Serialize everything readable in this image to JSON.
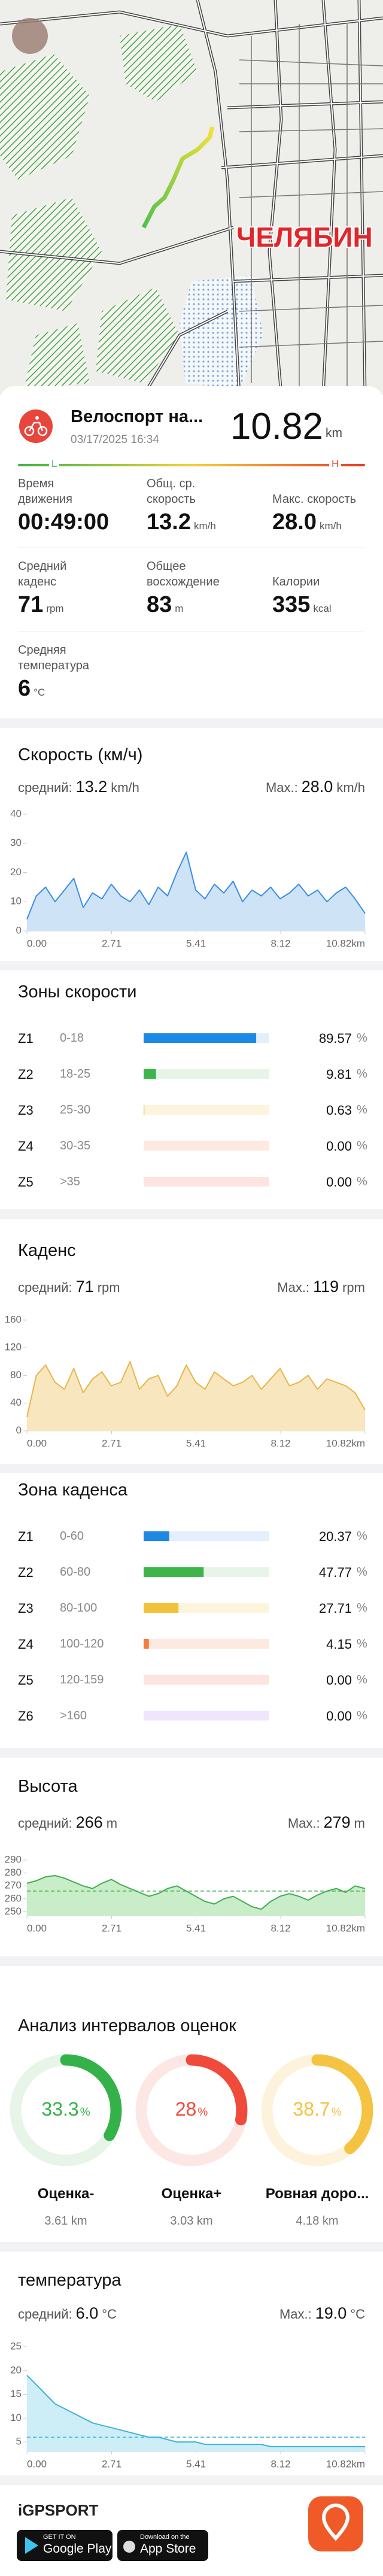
{
  "map": {
    "city_label": "ЧЕЛЯБИН"
  },
  "activity": {
    "title": "Велоспорт на...",
    "date": "03/17/2025 16:34",
    "distance": "10.82",
    "distance_unit": "km",
    "scale_low": "L",
    "scale_high": "H"
  },
  "stats": [
    {
      "label": "Время движения",
      "value": "00:49:00"
    },
    {
      "label": "Общ. ср. скорость",
      "value": "13.2",
      "unit": "km/h"
    },
    {
      "label": "Макс. скорость",
      "value": "28.0",
      "unit": "km/h"
    },
    {
      "label": "Средний каденс",
      "value": "71",
      "unit": "rpm"
    },
    {
      "label": "Общее восхождение",
      "value": "83",
      "unit": "m"
    },
    {
      "label": "Калории",
      "value": "335",
      "unit": "kcal"
    },
    {
      "label": "Средняя температура",
      "value": "6",
      "unit": "°C"
    }
  ],
  "chart_data": [
    {
      "type": "line",
      "title": "Скорость (км/ч)",
      "avg_label": "средний:",
      "avg": 13.2,
      "avg_unit": "km/h",
      "max_label": "Max.:",
      "max": {
        "value": 28,
        "label": "28.0"
      },
      "max_unit": "km/h",
      "color": "#3a8ee6",
      "fill": "#cfe3f7",
      "avg_line": false,
      "x": [
        0,
        0.3,
        0.6,
        0.9,
        1.2,
        1.5,
        1.8,
        2.1,
        2.4,
        2.7,
        3,
        3.3,
        3.6,
        3.9,
        4.2,
        4.5,
        4.8,
        5.1,
        5.4,
        5.7,
        6,
        6.3,
        6.6,
        6.9,
        7.2,
        7.5,
        7.8,
        8.1,
        8.4,
        8.7,
        9,
        9.3,
        9.6,
        9.9,
        10.2,
        10.5,
        10.82
      ],
      "values": [
        4,
        12,
        15,
        10,
        14,
        18,
        8,
        13,
        11,
        16,
        12,
        10,
        14,
        9,
        15,
        12,
        20,
        27,
        14,
        11,
        16,
        13,
        17,
        10,
        14,
        12,
        15,
        11,
        13,
        16,
        12,
        14,
        10,
        13,
        15,
        11,
        6
      ],
      "xlim": [
        0,
        10.82
      ],
      "xticks": [
        {
          "value": 0,
          "label": "0.00"
        },
        2.71,
        5.41,
        8.12,
        {
          "value": 10.82,
          "label": "10.82km"
        }
      ],
      "ylim": [
        0,
        40
      ],
      "yticks": [
        0,
        10,
        20,
        30,
        40
      ]
    },
    {
      "type": "line",
      "title": "Каденс",
      "avg_label": "средний:",
      "avg": 71,
      "avg_unit": "rpm",
      "max_label": "Max.:",
      "max": 119,
      "max_unit": "rpm",
      "color": "#e9b54a",
      "fill": "#f8e6bf",
      "avg_line": false,
      "x": [
        0,
        0.3,
        0.6,
        0.9,
        1.2,
        1.5,
        1.8,
        2.1,
        2.4,
        2.7,
        3,
        3.3,
        3.6,
        3.9,
        4.2,
        4.5,
        4.8,
        5.1,
        5.4,
        5.7,
        6,
        6.3,
        6.6,
        6.9,
        7.2,
        7.5,
        7.8,
        8.1,
        8.4,
        8.7,
        9,
        9.3,
        9.6,
        9.9,
        10.2,
        10.5,
        10.82
      ],
      "values": [
        20,
        80,
        95,
        70,
        60,
        90,
        55,
        75,
        85,
        65,
        70,
        100,
        60,
        75,
        80,
        50,
        65,
        95,
        70,
        60,
        85,
        75,
        65,
        70,
        80,
        60,
        75,
        90,
        65,
        70,
        80,
        60,
        75,
        70,
        65,
        55,
        30
      ],
      "xlim": [
        0,
        10.82
      ],
      "xticks": [
        {
          "value": 0,
          "label": "0.00"
        },
        2.71,
        5.41,
        8.12,
        {
          "value": 10.82,
          "label": "10.82km"
        }
      ],
      "ylim": [
        0,
        160
      ],
      "yticks": [
        0,
        40,
        80,
        120,
        160
      ]
    },
    {
      "type": "line",
      "title": "Высота",
      "avg_label": "средний:",
      "avg": 266,
      "avg_unit": "m",
      "max_label": "Max.:",
      "max": 279,
      "max_unit": "m",
      "color": "#3fae4f",
      "fill": "#c9ecc9",
      "avg_line": true,
      "x": [
        0,
        0.3,
        0.6,
        0.9,
        1.2,
        1.5,
        1.8,
        2.1,
        2.4,
        2.7,
        3,
        3.3,
        3.6,
        3.9,
        4.2,
        4.5,
        4.8,
        5.1,
        5.4,
        5.7,
        6,
        6.3,
        6.6,
        6.9,
        7.2,
        7.5,
        7.8,
        8.1,
        8.4,
        8.7,
        9,
        9.3,
        9.6,
        9.9,
        10.2,
        10.5,
        10.82
      ],
      "values": [
        272,
        274,
        277,
        278,
        276,
        273,
        270,
        268,
        272,
        275,
        271,
        268,
        265,
        262,
        264,
        268,
        270,
        266,
        262,
        258,
        256,
        260,
        262,
        258,
        254,
        252,
        258,
        262,
        264,
        262,
        259,
        263,
        266,
        268,
        265,
        270,
        268
      ],
      "xlim": [
        0,
        10.82
      ],
      "xticks": [
        {
          "value": 0,
          "label": "0.00"
        },
        2.71,
        5.41,
        8.12,
        {
          "value": 10.82,
          "label": "10.82km"
        }
      ],
      "ylim": [
        247,
        290
      ],
      "yticks": [
        250,
        260,
        270,
        280,
        290
      ]
    },
    {
      "type": "line",
      "title": "температура",
      "avg_label": "средний:",
      "avg": {
        "value": 6,
        "label": "6.0"
      },
      "avg_unit": "°C",
      "max_label": "Max.:",
      "max": {
        "value": 19,
        "label": "19.0"
      },
      "max_unit": "°C",
      "color": "#3fb3d9",
      "fill": "#cdeef7",
      "avg_line": true,
      "x": [
        0,
        0.3,
        0.6,
        0.9,
        1.2,
        1.5,
        1.8,
        2.1,
        2.4,
        2.7,
        3,
        3.3,
        3.6,
        3.9,
        4.2,
        4.5,
        4.8,
        5.1,
        5.4,
        5.7,
        6,
        6.3,
        6.6,
        6.9,
        7.2,
        7.5,
        7.8,
        8.1,
        8.4,
        8.7,
        9,
        9.3,
        9.6,
        9.9,
        10.2,
        10.5,
        10.82
      ],
      "values": [
        19,
        17,
        15,
        13,
        12,
        11,
        10,
        9,
        8.5,
        8,
        7.5,
        7,
        6.5,
        6,
        6,
        5.5,
        5,
        5,
        5,
        4.5,
        4.5,
        4.5,
        4.5,
        4.5,
        4.5,
        4.5,
        4,
        4,
        4,
        4,
        4,
        4,
        4,
        4,
        4,
        4,
        4
      ],
      "xlim": [
        0,
        10.82
      ],
      "xticks": [
        {
          "value": 0,
          "label": "0.00"
        },
        2.71,
        5.41,
        8.12,
        {
          "value": 10.82,
          "label": "10.82km"
        }
      ],
      "ylim": [
        3,
        25
      ],
      "yticks": [
        5,
        10,
        15,
        20,
        25
      ]
    }
  ],
  "speed_zones": {
    "title": "Зоны скорости",
    "unit": "%",
    "zones": [
      {
        "name": "Z1",
        "range": "0-18",
        "value": 89.57,
        "color": "#1e88e5",
        "track_color": "#e3f0fb"
      },
      {
        "name": "Z2",
        "range": "18-25",
        "value": 9.81,
        "color": "#3cb54a",
        "track_color": "#e6f5e7"
      },
      {
        "name": "Z3",
        "range": "25-30",
        "value": 0.63,
        "color": "#f2c13b",
        "track_color": "#fdf4de"
      },
      {
        "name": "Z4",
        "range": "30-35",
        "value": 0,
        "value_label": "0.00",
        "color": "#f47c3c",
        "track_color": "#fde9df"
      },
      {
        "name": "Z5",
        "range": ">35",
        "value": 0,
        "value_label": "0.00",
        "color": "#ee5a4a",
        "track_color": "#fde4e1"
      }
    ]
  },
  "cadence_zones": {
    "title": "Зона каденса",
    "unit": "%",
    "zones": [
      {
        "name": "Z1",
        "range": "0-60",
        "value": 20.37,
        "color": "#1e88e5",
        "track_color": "#e3f0fb"
      },
      {
        "name": "Z2",
        "range": "60-80",
        "value": 47.77,
        "color": "#3cb54a",
        "track_color": "#e6f5e7"
      },
      {
        "name": "Z3",
        "range": "80-100",
        "value": 27.71,
        "color": "#f2c13b",
        "track_color": "#fdf4de"
      },
      {
        "name": "Z4",
        "range": "100-120",
        "value": 4.15,
        "color": "#f47c3c",
        "track_color": "#fde9df"
      },
      {
        "name": "Z5",
        "range": "120-159",
        "value": 0,
        "value_label": "0.00",
        "color": "#ee5a4a",
        "track_color": "#fde4e1"
      },
      {
        "name": "Z6",
        "range": ">160",
        "value": 0,
        "value_label": "0.00",
        "color": "#a66ee0",
        "track_color": "#f0e6fb"
      }
    ]
  },
  "intervals": {
    "title": "Анализ интервалов оценок",
    "unit": "%",
    "items": [
      {
        "value": 33.3,
        "name": "Оценка-",
        "distance": "3.61 km",
        "color": "#34b249",
        "track_color": "#e6f5e8"
      },
      {
        "value": 28,
        "name": "Оценка+",
        "distance": "3.03 km",
        "color": "#f04a3a",
        "track_color": "#fde7e4"
      },
      {
        "value": 38.7,
        "name": "Ровная доро...",
        "distance": "4.18 km",
        "color": "#f5c242",
        "track_color": "#fdf3dc"
      }
    ]
  },
  "footer": {
    "brand": "iGPSPORT",
    "google_small": "GET IT ON",
    "google_big": "Google Play",
    "apple_small": "Download on the",
    "apple_big": "App Store"
  }
}
